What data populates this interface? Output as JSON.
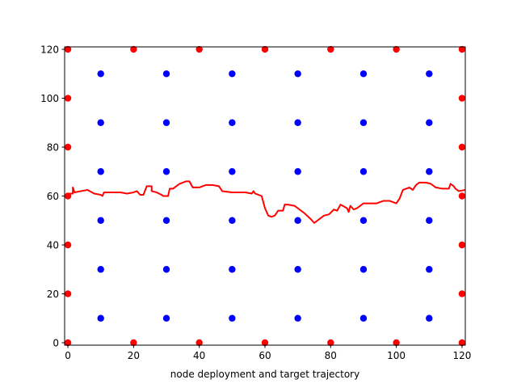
{
  "chart_data": {
    "type": "scatter",
    "title": "",
    "xlabel": "node deployment and target trajectory",
    "ylabel": "",
    "xlim": [
      -1,
      121
    ],
    "ylim": [
      -1,
      121
    ],
    "xticks": [
      "0",
      "20",
      "40",
      "60",
      "80",
      "100",
      "120"
    ],
    "yticks": [
      "0",
      "20",
      "40",
      "60",
      "80",
      "100",
      "120"
    ],
    "grid": false,
    "legend": "none",
    "series": [
      {
        "kind": "scatter",
        "color": "#ff0000",
        "points": [
          [
            0,
            0
          ],
          [
            20,
            0
          ],
          [
            40,
            0
          ],
          [
            60,
            0
          ],
          [
            80,
            0
          ],
          [
            100,
            0
          ],
          [
            120,
            0
          ],
          [
            0,
            120
          ],
          [
            20,
            120
          ],
          [
            40,
            120
          ],
          [
            60,
            120
          ],
          [
            80,
            120
          ],
          [
            100,
            120
          ],
          [
            120,
            120
          ],
          [
            0,
            20
          ],
          [
            0,
            40
          ],
          [
            0,
            60
          ],
          [
            0,
            80
          ],
          [
            0,
            100
          ],
          [
            120,
            20
          ],
          [
            120,
            40
          ],
          [
            120,
            60
          ],
          [
            120,
            80
          ],
          [
            120,
            100
          ]
        ]
      },
      {
        "kind": "scatter",
        "color": "#0000ff",
        "points": [
          [
            10,
            10
          ],
          [
            30,
            10
          ],
          [
            50,
            10
          ],
          [
            70,
            10
          ],
          [
            90,
            10
          ],
          [
            110,
            10
          ],
          [
            10,
            30
          ],
          [
            30,
            30
          ],
          [
            50,
            30
          ],
          [
            70,
            30
          ],
          [
            90,
            30
          ],
          [
            110,
            30
          ],
          [
            10,
            50
          ],
          [
            30,
            50
          ],
          [
            50,
            50
          ],
          [
            70,
            50
          ],
          [
            90,
            50
          ],
          [
            110,
            50
          ],
          [
            10,
            70
          ],
          [
            30,
            70
          ],
          [
            50,
            70
          ],
          [
            70,
            70
          ],
          [
            90,
            70
          ],
          [
            110,
            70
          ],
          [
            10,
            90
          ],
          [
            30,
            90
          ],
          [
            50,
            90
          ],
          [
            70,
            90
          ],
          [
            90,
            90
          ],
          [
            110,
            90
          ],
          [
            10,
            110
          ],
          [
            30,
            110
          ],
          [
            50,
            110
          ],
          [
            70,
            110
          ],
          [
            90,
            110
          ],
          [
            110,
            110
          ]
        ]
      },
      {
        "kind": "line",
        "color": "#ff0000",
        "points": [
          [
            0,
            61
          ],
          [
            1.5,
            61
          ],
          [
            1.5,
            63.5
          ],
          [
            2,
            61.5
          ],
          [
            4,
            62
          ],
          [
            6,
            62.5
          ],
          [
            8,
            61
          ],
          [
            10,
            60.5
          ],
          [
            10.5,
            60
          ],
          [
            11,
            61.5
          ],
          [
            14,
            61.5
          ],
          [
            16,
            61.5
          ],
          [
            18,
            61
          ],
          [
            20,
            61.5
          ],
          [
            21,
            62
          ],
          [
            22,
            60.5
          ],
          [
            23,
            60.5
          ],
          [
            24,
            64
          ],
          [
            25.5,
            64
          ],
          [
            25.5,
            62
          ],
          [
            27,
            61.5
          ],
          [
            28.5,
            60.5
          ],
          [
            29,
            60
          ],
          [
            30,
            60
          ],
          [
            30.5,
            60
          ],
          [
            31,
            63
          ],
          [
            32,
            63
          ],
          [
            34,
            65
          ],
          [
            36,
            66
          ],
          [
            37,
            66
          ],
          [
            38,
            63.5
          ],
          [
            40,
            63.5
          ],
          [
            42,
            64.5
          ],
          [
            44,
            64.5
          ],
          [
            46,
            64
          ],
          [
            47,
            62
          ],
          [
            50,
            61.5
          ],
          [
            52,
            61.5
          ],
          [
            54,
            61.5
          ],
          [
            56,
            61
          ],
          [
            56.5,
            62
          ],
          [
            57,
            61
          ],
          [
            59,
            60
          ],
          [
            60,
            55
          ],
          [
            61,
            52
          ],
          [
            62,
            51.5
          ],
          [
            63,
            52
          ],
          [
            64,
            54
          ],
          [
            65.5,
            54
          ],
          [
            66,
            56.5
          ],
          [
            67,
            56.5
          ],
          [
            69,
            56
          ],
          [
            70,
            55
          ],
          [
            72,
            53
          ],
          [
            74,
            50.5
          ],
          [
            75,
            49
          ],
          [
            76,
            50
          ],
          [
            77,
            51
          ],
          [
            78,
            52
          ],
          [
            79.5,
            52.5
          ],
          [
            81,
            54.5
          ],
          [
            82,
            54
          ],
          [
            83,
            56.5
          ],
          [
            85,
            55
          ],
          [
            85.5,
            53.5
          ],
          [
            86,
            56
          ],
          [
            87,
            54.5
          ],
          [
            88,
            55
          ],
          [
            90,
            57
          ],
          [
            92,
            57
          ],
          [
            94,
            57
          ],
          [
            95,
            57.5
          ],
          [
            96,
            58
          ],
          [
            98,
            58
          ],
          [
            100,
            57
          ],
          [
            101,
            59
          ],
          [
            102,
            62.5
          ],
          [
            103,
            63
          ],
          [
            104,
            63.5
          ],
          [
            105,
            62.5
          ],
          [
            106,
            64.5
          ],
          [
            107,
            65.5
          ],
          [
            109,
            65.5
          ],
          [
            110.5,
            65
          ],
          [
            112,
            63.5
          ],
          [
            114,
            63
          ],
          [
            116,
            63
          ],
          [
            116.5,
            65
          ],
          [
            117.5,
            64
          ],
          [
            118,
            63
          ],
          [
            119,
            62
          ],
          [
            121,
            62.5
          ]
        ]
      }
    ]
  }
}
